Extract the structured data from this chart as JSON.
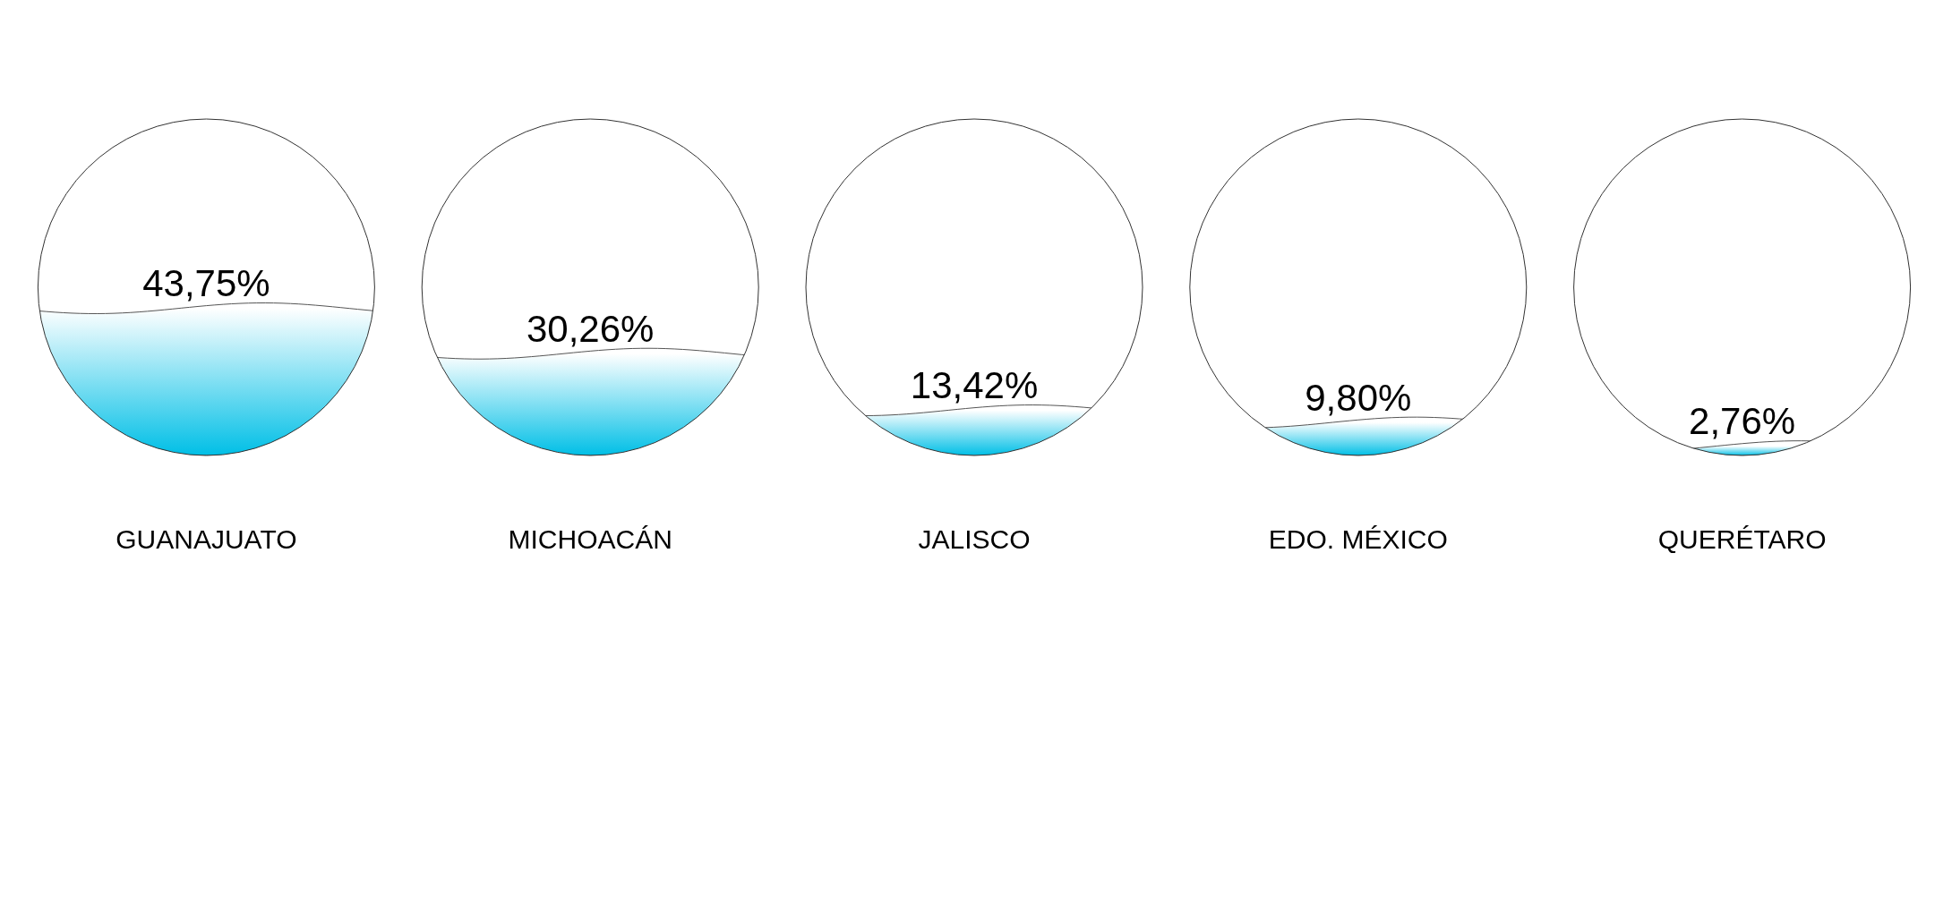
{
  "chart_data": {
    "type": "other",
    "categories": [
      "GUANAJUATO",
      "MICHOACÁN",
      "JALISCO",
      "EDO. MÉXICO",
      "QUERÉTARO"
    ],
    "values": [
      43.75,
      30.26,
      13.42,
      9.8,
      2.76
    ],
    "value_labels": [
      "43,75%",
      "30,26%",
      "13,42%",
      "9,80%",
      "2,76%"
    ],
    "color": "#00bfe6"
  }
}
